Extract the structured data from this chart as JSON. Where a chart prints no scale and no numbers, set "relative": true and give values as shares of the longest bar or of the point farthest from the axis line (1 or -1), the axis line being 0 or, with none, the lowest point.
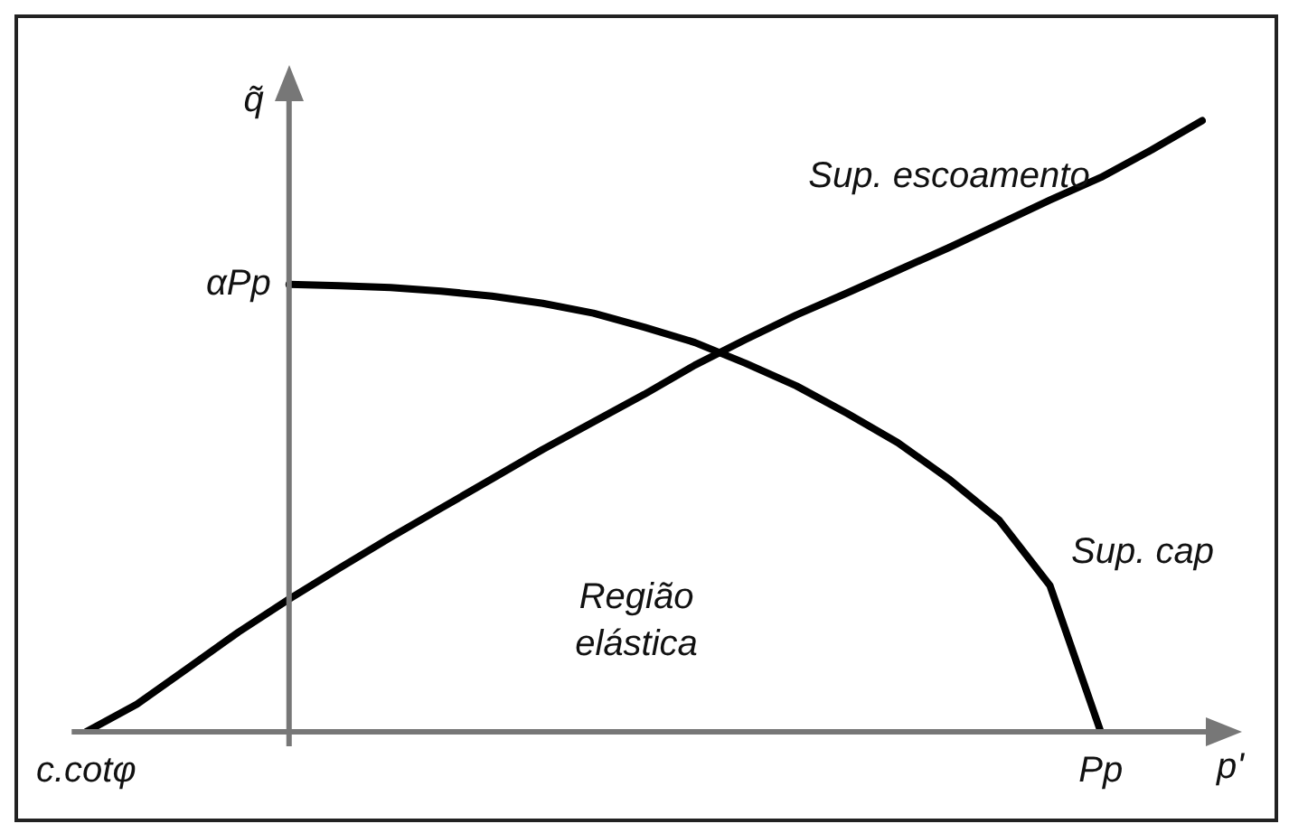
{
  "chart_data": {
    "type": "line",
    "relative": true,
    "xlabel": "p'",
    "ylabel": "q̃",
    "categories": [
      "c.cotφ",
      null,
      null,
      null,
      null,
      null,
      null,
      null,
      null,
      null,
      null,
      null,
      null,
      null,
      null,
      null,
      null,
      null,
      null,
      null,
      "Pp",
      null,
      null
    ],
    "legend": false,
    "marker": "none",
    "line_style": "solid",
    "series": [
      {
        "color": "#000000",
        "values": [
          0,
          0.045,
          0.104,
          0.163,
          0.217,
          0.268,
          0.318,
          0.366,
          0.414,
          0.462,
          0.507,
          0.552,
          0.6,
          0.642,
          0.682,
          0.718,
          0.755,
          0.792,
          0.831,
          0.87,
          0.907,
          0.952,
          1
        ]
      },
      {
        "color": "#000000",
        "values": [
          null,
          null,
          null,
          null,
          0.732,
          0.73,
          0.727,
          0.721,
          0.713,
          0.701,
          0.685,
          0.662,
          0.637,
          0.603,
          0.566,
          0.521,
          0.473,
          0.414,
          0.346,
          0.239,
          0,
          null,
          null
        ]
      }
    ],
    "annotations": [
      "αPp",
      "Sup. escoamento",
      "Sup. cap",
      "Região\nelástica"
    ]
  }
}
